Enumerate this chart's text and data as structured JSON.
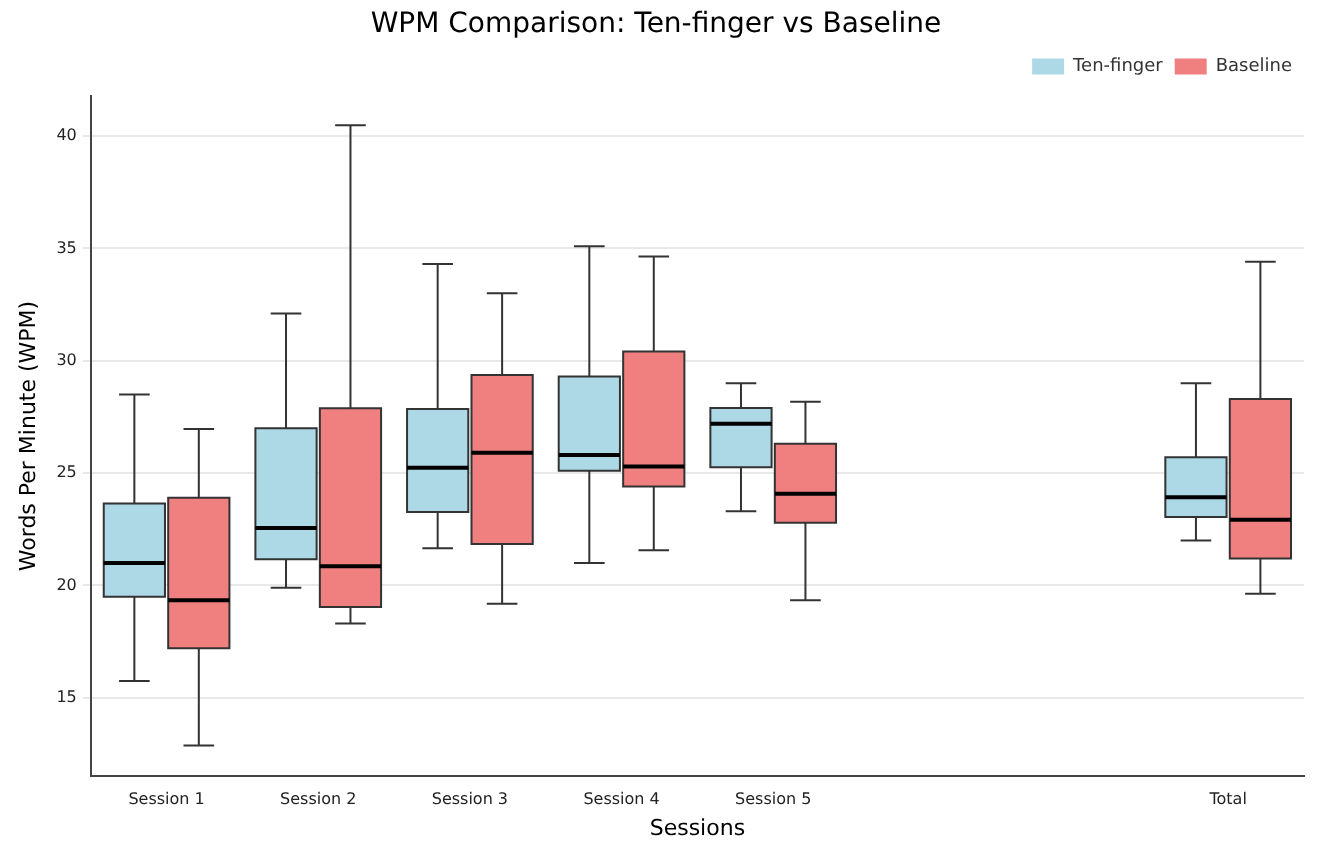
{
  "chart_data": {
    "type": "box",
    "title": "WPM Comparison: Ten-finger vs Baseline",
    "xlabel": "Sessions",
    "ylabel": "Words Per Minute (WPM)",
    "categories": [
      "Session 1",
      "Session 2",
      "Session 3",
      "Session 4",
      "Session 5",
      null,
      null,
      "Total"
    ],
    "series": [
      {
        "name": "Ten-finger",
        "color": "#add8e6",
        "boxes": [
          {
            "low": 15.75,
            "q1": 19.5,
            "median": 21.0,
            "q3": 23.65,
            "high": 28.5
          },
          {
            "low": 19.9,
            "q1": 21.17,
            "median": 22.55,
            "q3": 27.0,
            "high": 32.1
          },
          {
            "low": 21.65,
            "q1": 23.27,
            "median": 25.24,
            "q3": 27.85,
            "high": 34.3
          },
          {
            "low": 21.0,
            "q1": 25.1,
            "median": 25.8,
            "q3": 29.3,
            "high": 35.1
          },
          {
            "low": 23.3,
            "q1": 25.26,
            "median": 27.2,
            "q3": 27.9,
            "high": 29.0
          },
          null,
          null,
          {
            "low": 22.0,
            "q1": 23.05,
            "median": 23.92,
            "q3": 25.7,
            "high": 29.0
          }
        ]
      },
      {
        "name": "Baseline",
        "color": "#f08080",
        "boxes": [
          {
            "low": 12.87,
            "q1": 17.2,
            "median": 19.34,
            "q3": 23.9,
            "high": 26.96
          },
          {
            "low": 18.3,
            "q1": 19.04,
            "median": 20.85,
            "q3": 27.88,
            "high": 40.48
          },
          {
            "low": 19.18,
            "q1": 21.84,
            "median": 25.91,
            "q3": 29.36,
            "high": 33.0
          },
          {
            "low": 21.57,
            "q1": 24.4,
            "median": 25.29,
            "q3": 30.41,
            "high": 34.64
          },
          {
            "low": 19.34,
            "q1": 22.79,
            "median": 24.08,
            "q3": 26.3,
            "high": 28.17
          },
          null,
          null,
          {
            "low": 19.63,
            "q1": 21.2,
            "median": 22.92,
            "q3": 28.3,
            "high": 34.4
          }
        ]
      }
    ],
    "ylim": [
      11.5,
      41.8
    ],
    "yticks": [
      15,
      20,
      25,
      30,
      35,
      40
    ],
    "grid": "y",
    "legend": "top right"
  }
}
